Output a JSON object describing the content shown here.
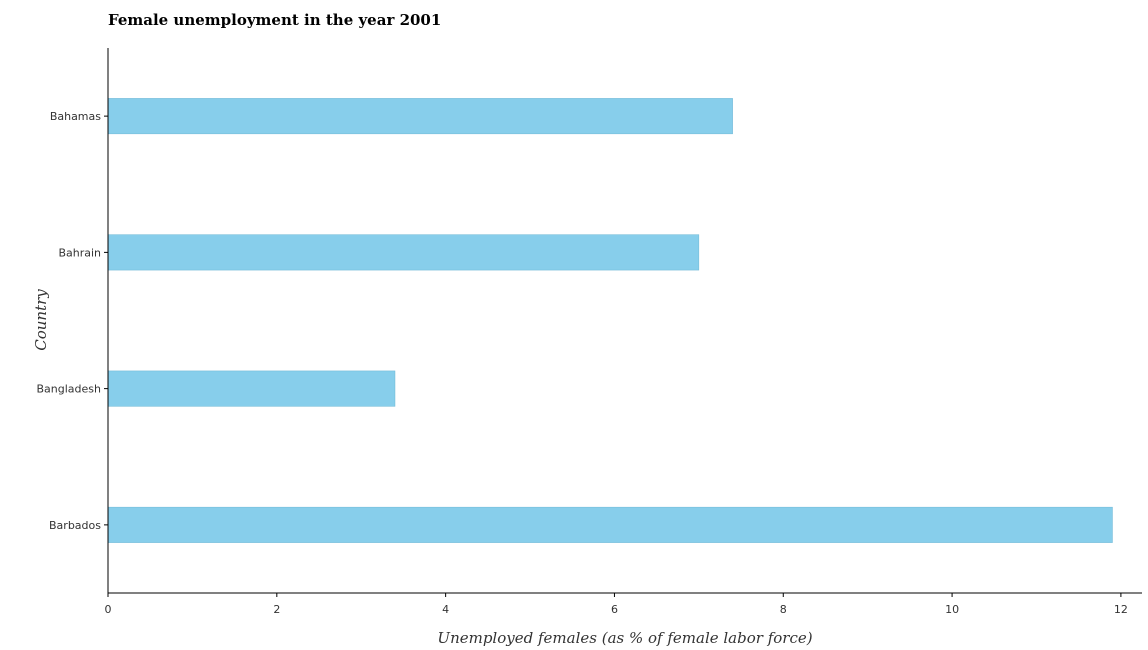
{
  "chart_data": {
    "type": "bar",
    "orientation": "horizontal",
    "title": "Female unemployment in the year 2001",
    "xlabel": "Unemployed females (as % of female labor force)",
    "ylabel": "Country",
    "categories": [
      "Bahamas",
      "Bahrain",
      "Bangladesh",
      "Barbados"
    ],
    "values": [
      7.4,
      7.0,
      3.4,
      11.9
    ],
    "xlim": [
      0,
      12.25
    ],
    "xticks": [
      "0",
      "2",
      "4",
      "6",
      "8",
      "10",
      "12"
    ],
    "grid": false,
    "bar_color": "#87CEEB"
  }
}
